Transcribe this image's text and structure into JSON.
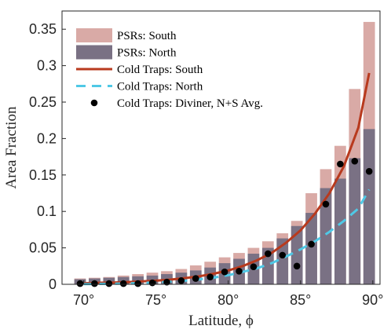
{
  "chart_data": {
    "type": "bar",
    "xlabel": "Latitude, ϕ",
    "ylabel": "Area Fraction",
    "xlim": [
      68.5,
      90.5
    ],
    "ylim": [
      0,
      0.375
    ],
    "xticks": [
      70,
      75,
      80,
      85,
      90
    ],
    "xtick_labels": [
      "70°",
      "75°",
      "80°",
      "85°",
      "90°"
    ],
    "yticks": [
      0,
      0.05,
      0.1,
      0.15,
      0.2,
      0.25,
      0.3,
      0.35
    ],
    "ytick_labels": [
      "0",
      "0.05",
      "0.1",
      "0.15",
      "0.2",
      "0.25",
      "0.3",
      "0.35"
    ],
    "grid": false,
    "legend_position": "top-left",
    "x": [
      69.75,
      70.75,
      71.75,
      72.75,
      73.75,
      74.75,
      75.75,
      76.75,
      77.75,
      78.75,
      79.75,
      80.75,
      81.75,
      82.75,
      83.75,
      84.75,
      85.75,
      86.75,
      87.75,
      88.75,
      89.75
    ],
    "series": [
      {
        "name": "PSRs: South",
        "kind": "bar",
        "color": "#d9aaa6",
        "values": [
          0.008,
          0.009,
          0.01,
          0.012,
          0.014,
          0.016,
          0.018,
          0.021,
          0.026,
          0.031,
          0.037,
          0.043,
          0.05,
          0.059,
          0.07,
          0.087,
          0.125,
          0.158,
          0.19,
          0.268,
          0.36
        ]
      },
      {
        "name": "PSRs: North",
        "kind": "bar",
        "color": "#7a7184",
        "values": [
          0.007,
          0.008,
          0.009,
          0.01,
          0.011,
          0.012,
          0.014,
          0.016,
          0.019,
          0.023,
          0.029,
          0.035,
          0.042,
          0.05,
          0.063,
          0.08,
          0.098,
          0.132,
          0.145,
          0.173,
          0.213
        ]
      },
      {
        "name": "Cold Traps: South",
        "kind": "line",
        "color": "#b83a1e",
        "x": [
          70,
          71,
          72,
          73,
          74,
          75,
          76,
          77,
          78,
          79,
          80,
          81,
          82,
          83,
          84,
          85,
          86,
          87,
          88,
          89,
          89.75
        ],
        "values": [
          0.0015,
          0.002,
          0.0025,
          0.003,
          0.004,
          0.005,
          0.0065,
          0.0085,
          0.011,
          0.0145,
          0.019,
          0.025,
          0.033,
          0.043,
          0.057,
          0.074,
          0.097,
          0.125,
          0.162,
          0.215,
          0.29
        ]
      },
      {
        "name": "Cold Traps: North",
        "kind": "dashed-line",
        "color": "#4fc9e6",
        "x": [
          70,
          71,
          72,
          73,
          74,
          75,
          76,
          77,
          78,
          79,
          80,
          81,
          82,
          83,
          84,
          85,
          86,
          87,
          88,
          89,
          89.75
        ],
        "values": [
          0.0003,
          0.0005,
          0.0008,
          0.0012,
          0.0018,
          0.0026,
          0.0037,
          0.005,
          0.0068,
          0.0092,
          0.0125,
          0.017,
          0.022,
          0.029,
          0.038,
          0.048,
          0.059,
          0.072,
          0.087,
          0.104,
          0.13
        ]
      },
      {
        "name": "Cold Traps: Diviner, N+S Avg.",
        "kind": "scatter",
        "color": "#000000",
        "x": [
          69.75,
          70.75,
          71.75,
          72.75,
          73.75,
          74.75,
          75.75,
          76.75,
          77.75,
          78.75,
          79.75,
          80.75,
          81.75,
          82.75,
          83.75,
          84.75,
          85.75,
          86.75,
          87.75,
          88.75,
          89.75
        ],
        "values": [
          0.001,
          0.001,
          0.001,
          0.001,
          0.001,
          0.002,
          0.003,
          0.005,
          0.008,
          0.01,
          0.017,
          0.018,
          0.024,
          0.042,
          0.04,
          0.025,
          0.055,
          0.11,
          0.165,
          0.169,
          0.155
        ]
      }
    ]
  }
}
